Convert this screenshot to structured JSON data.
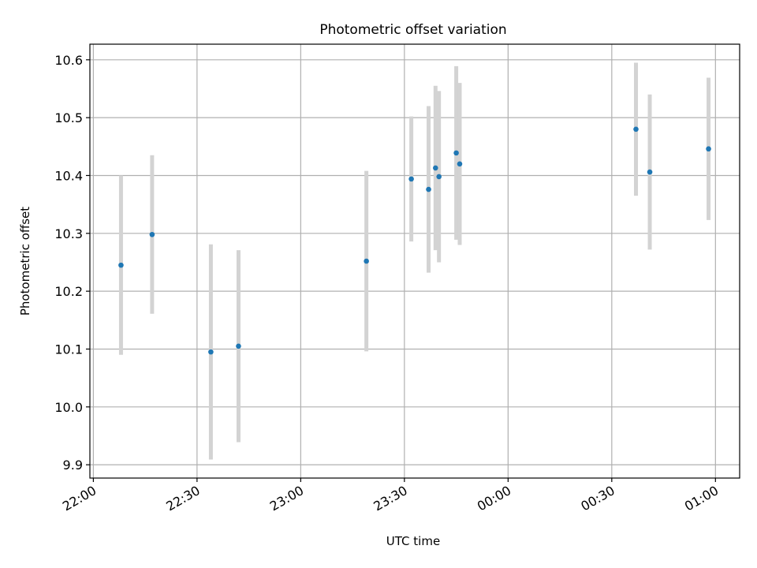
{
  "chart_data": {
    "type": "scatter",
    "title": "Photometric offset variation",
    "xlabel": "UTC time",
    "ylabel": "Photometric offset",
    "x_tick_labels": [
      "22:00",
      "22:30",
      "23:00",
      "23:30",
      "00:00",
      "00:30",
      "01:00"
    ],
    "x_tick_values": [
      "22:00",
      "22:30",
      "23:00",
      "23:30",
      "00:00",
      "00:30",
      "01:00"
    ],
    "y_ticks": [
      9.9,
      10.0,
      10.1,
      10.2,
      10.3,
      10.4,
      10.5,
      10.6
    ],
    "y_tick_labels": [
      "9.9",
      "10.0",
      "10.1",
      "10.2",
      "10.3",
      "10.4",
      "10.5",
      "10.6"
    ],
    "xlim": [
      "21:59",
      "01:07"
    ],
    "ylim": [
      9.877,
      10.627
    ],
    "grid": true,
    "point_color": "#1f77b4",
    "errorbar_color": "#d3d3d3",
    "points": [
      {
        "x": "22:08",
        "y": 10.245,
        "yerr": 0.155
      },
      {
        "x": "22:17",
        "y": 10.298,
        "yerr": 0.137
      },
      {
        "x": "22:34",
        "y": 10.095,
        "yerr": 0.186
      },
      {
        "x": "22:42",
        "y": 10.105,
        "yerr": 0.166
      },
      {
        "x": "23:19",
        "y": 10.252,
        "yerr": 0.156
      },
      {
        "x": "23:32",
        "y": 10.394,
        "yerr": 0.108
      },
      {
        "x": "23:37",
        "y": 10.376,
        "yerr": 0.144
      },
      {
        "x": "23:39",
        "y": 10.413,
        "yerr": 0.142
      },
      {
        "x": "23:40",
        "y": 10.398,
        "yerr": 0.148
      },
      {
        "x": "23:45",
        "y": 10.439,
        "yerr": 0.15
      },
      {
        "x": "23:46",
        "y": 10.42,
        "yerr": 0.14
      },
      {
        "x": "00:37",
        "y": 10.48,
        "yerr": 0.115
      },
      {
        "x": "00:41",
        "y": 10.406,
        "yerr": 0.134
      },
      {
        "x": "00:58",
        "y": 10.446,
        "yerr": 0.123
      }
    ]
  }
}
